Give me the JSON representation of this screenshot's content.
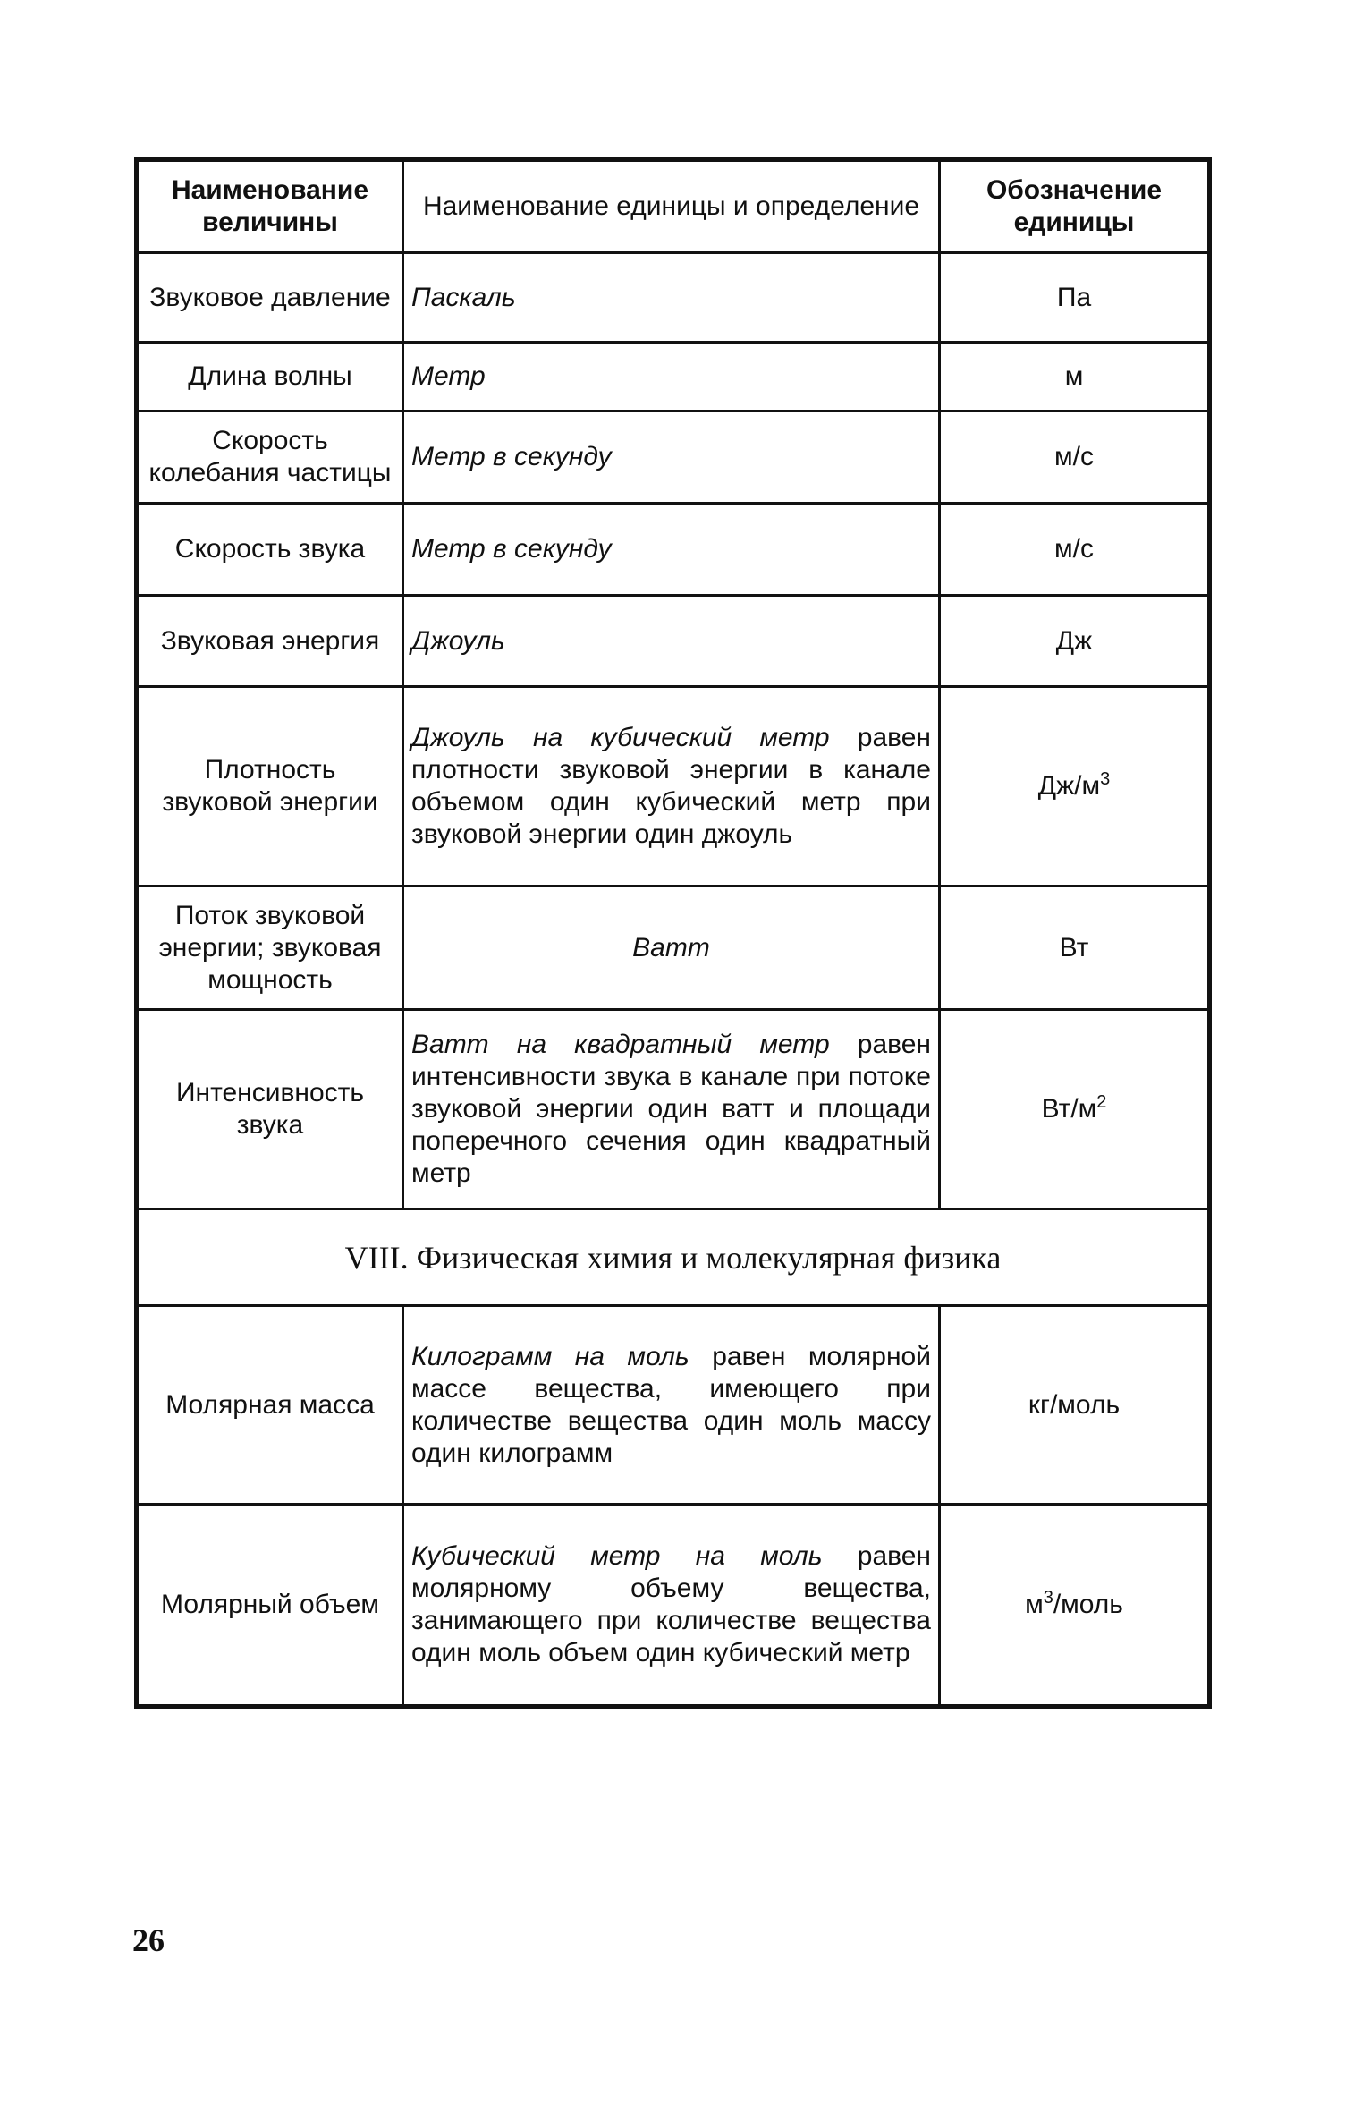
{
  "table": {
    "headers": [
      "Наименование величины",
      "Наименование единицы и определение",
      "Обозначение единицы"
    ],
    "rows_a": [
      {
        "name": "Звуковое давление",
        "unit": "Паскаль",
        "definition": "",
        "symbol": "Па"
      },
      {
        "name": "Длина волны",
        "unit": "Метр",
        "definition": "",
        "symbol": "м"
      },
      {
        "name": "Скорость колебания частицы",
        "unit": "Метр в секунду",
        "definition": "",
        "symbol": "м/с"
      },
      {
        "name": "Скорость звука",
        "unit": "Метр в секунду",
        "definition": "",
        "symbol": "м/с"
      },
      {
        "name": "Звуковая энергия",
        "unit": "Джоуль",
        "definition": "",
        "symbol": "Дж"
      },
      {
        "name": "Плотность звуковой энергии",
        "unit": "Джоуль на кубический метр",
        "definition": " равен плотности звуковой энергии в канале объемом один кубический метр при звуковой энергии один джоуль",
        "symbol": "Дж/м",
        "sup": "3"
      },
      {
        "name": "Поток звуковой энергии; звуковая мощность",
        "unit": "Ватт",
        "definition": "",
        "symbol": "Вт"
      },
      {
        "name": "Интенсивность звука",
        "unit": "Ватт на квадратный метр",
        "definition": " равен интенсивности звука в канале при потоке звуковой энергии один ватт и площади поперечного сечения один квадратный метр",
        "symbol": "Вт/м",
        "sup": "2"
      }
    ],
    "section_title": "VIII. Физическая химия и молекулярная физика",
    "rows_b": [
      {
        "name": "Молярная масса",
        "unit": "Килограмм на моль",
        "definition": " равен молярной массе вещества, имеющего при количестве вещества один моль массу один килограмм",
        "symbol": "кг/моль",
        "pre": ""
      },
      {
        "name": "Молярный объем",
        "unit": "Кубический метр на моль",
        "definition": " равен молярному объему вещества, занимающего при количестве вещества один моль объем один кубический метр",
        "symbol": "/моль",
        "pre": "м",
        "sup": "3"
      }
    ]
  },
  "page_number": "26"
}
